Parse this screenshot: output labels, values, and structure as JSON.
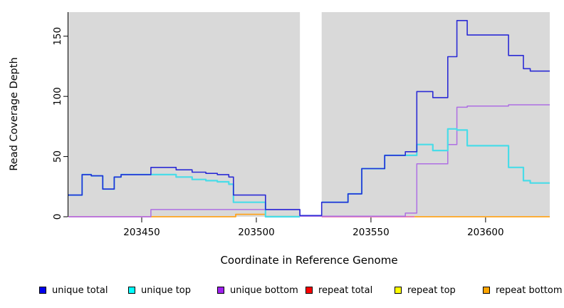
{
  "figure": {
    "type": "read-coverage-step-plot"
  },
  "legend": {
    "items": [
      {
        "label": "unique total",
        "color": "#0000ee"
      },
      {
        "label": "unique top",
        "color": "#00ffff"
      },
      {
        "label": "unique bottom",
        "color": "#a020f0"
      },
      {
        "label": "repeat total",
        "color": "#ff0000"
      },
      {
        "label": "repeat top",
        "color": "#ffff00"
      },
      {
        "label": "repeat bottom",
        "color": "#ffa500"
      }
    ]
  },
  "chart_data": {
    "type": "line",
    "step": true,
    "title": "",
    "xlabel": "Coordinate in Reference Genome",
    "ylabel": "Read Coverage Depth",
    "xlim": [
      203418,
      203628
    ],
    "ylim": [
      0,
      170
    ],
    "x_ticks": [
      203450,
      203500,
      203550,
      203600
    ],
    "y_ticks": [
      0,
      50,
      100,
      150
    ],
    "grid": false,
    "legend_position": "bottom",
    "panel_bg": "#d9d9d9",
    "gap_region": {
      "x_start": 203519,
      "x_end": 203528.5,
      "color": "#ffffff"
    },
    "series": [
      {
        "id": "repeat-top",
        "name": "repeat top",
        "line_color": "#9fd9a8",
        "width": 1.8,
        "segments": [
          {
            "edges": [
              203504,
              203519
            ],
            "values": [
              0.3
            ]
          }
        ]
      },
      {
        "id": "repeat-total",
        "name": "repeat total",
        "line_color": "#e86fa8",
        "width": 1.8,
        "segments": [
          {
            "edges": [
              203418,
              203454
            ],
            "values": [
              0
            ]
          },
          {
            "edges": [
              203528.5,
              203569
            ],
            "values": [
              0
            ]
          }
        ]
      },
      {
        "id": "repeat-bottom",
        "name": "repeat bottom",
        "line_color": "#ffa41e",
        "width": 1.8,
        "segments": [
          {
            "edges": [
              203454,
              203491,
              203504
            ],
            "values": [
              0,
              2
            ]
          },
          {
            "edges": [
              203569,
              203628
            ],
            "values": [
              0
            ]
          }
        ]
      },
      {
        "id": "unique-bottom",
        "name": "unique bottom",
        "line_color": "#ae6fe3",
        "width": 1.5,
        "segments": [
          {
            "edges": [
              203418,
              203454,
              203519,
              203565,
              203570,
              203583.5,
              203587.5,
              203592,
              203610,
              203628
            ],
            "values": [
              0,
              6,
              0.5,
              3,
              44,
              60,
              91,
              92,
              93
            ]
          }
        ]
      },
      {
        "id": "unique-top",
        "name": "unique top",
        "line_color": "#49dce8",
        "width": 2.2,
        "segments": [
          {
            "edges": [
              203418,
              203424,
              203428,
              203433,
              203438,
              203441,
              203465,
              203472,
              203478,
              203483,
              203488,
              203490,
              203504,
              203519
            ],
            "values": [
              18,
              35,
              34,
              23,
              33,
              35,
              33,
              31,
              30,
              29,
              27,
              12,
              0
            ]
          },
          {
            "edges": [
              203528.5,
              203540,
              203546,
              203556,
              203570,
              203577,
              203583.5,
              203587.5,
              203592,
              203610,
              203616.5,
              203619.5,
              203628
            ],
            "values": [
              12,
              19,
              40,
              51,
              60,
              55,
              73,
              72,
              59,
              41,
              30,
              28
            ]
          }
        ]
      },
      {
        "id": "unique-total",
        "name": "unique total",
        "line_color": "#2b2bd5",
        "width": 1.6,
        "segments": [
          {
            "edges": [
              203418,
              203424,
              203428,
              203433,
              203438,
              203441,
              203454,
              203465,
              203472,
              203478,
              203483,
              203488,
              203490,
              203504,
              203519,
              203528.5,
              203540,
              203546,
              203556,
              203565,
              203570,
              203577,
              203583.5,
              203587.5,
              203592,
              203610,
              203616.5,
              203619.5,
              203628
            ],
            "values": [
              18,
              35,
              34,
              23,
              33,
              35,
              41,
              39,
              37,
              36,
              35,
              33,
              18,
              6,
              1,
              12,
              19,
              40,
              51,
              54,
              104,
              99,
              133,
              163,
              151,
              134,
              123,
              121
            ]
          }
        ]
      }
    ]
  }
}
